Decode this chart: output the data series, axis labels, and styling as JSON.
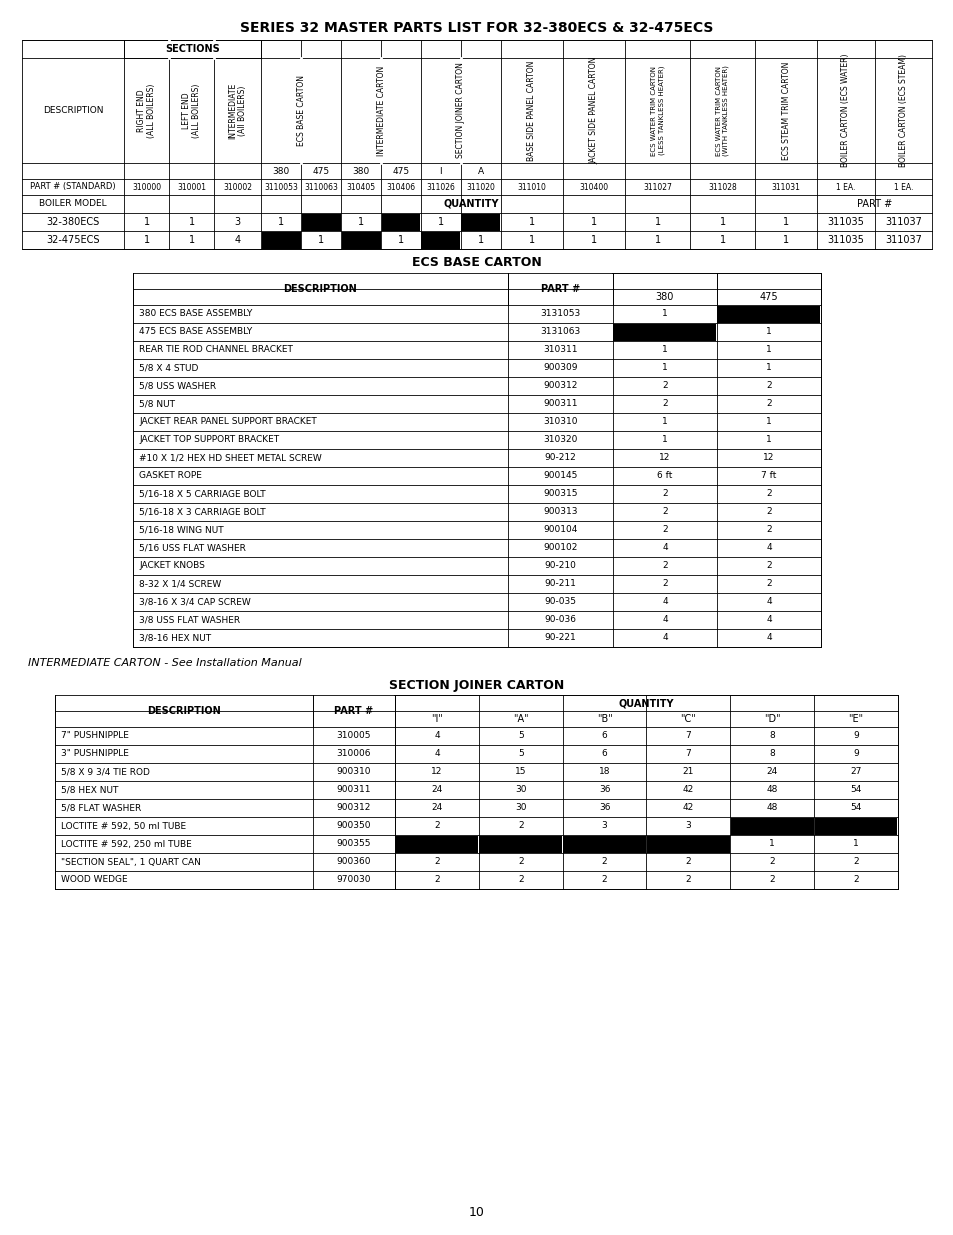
{
  "title": "SERIES 32 MASTER PARTS LIST FOR 32-380ECS & 32-475ECS",
  "ecs_base_carton_title": "ECS BASE CARTON",
  "section_joiner_carton_title": "SECTION JOINER CARTON",
  "intermediate_carton_text": "INTERMEDIATE CARTON - See Installation Manual",
  "page_number": "10",
  "master_part_numbers": [
    "310000",
    "310001",
    "310002",
    "3110053",
    "3110063",
    "310405",
    "310406",
    "311026",
    "311020",
    "311010",
    "310400",
    "311027",
    "311028",
    "311031",
    "1 EA.",
    "1 EA."
  ],
  "master_boiler_models": [
    "32-380ECS",
    "32-475ECS"
  ],
  "master_model_data_380": [
    "1",
    "1",
    "3",
    "1",
    "BLACK",
    "1",
    "BLACK",
    "1",
    "BLACK",
    "1",
    "1",
    "1",
    "1",
    "1",
    "311035",
    "311037"
  ],
  "master_model_data_475": [
    "1",
    "1",
    "4",
    "BLACK",
    "1",
    "BLACK",
    "1",
    "BLACK",
    "1",
    "1",
    "1",
    "1",
    "1",
    "1",
    "311035",
    "311037"
  ],
  "ecs_rows": [
    [
      "380 ECS BASE ASSEMBLY",
      "3131053",
      "1",
      "BLACK"
    ],
    [
      "475 ECS BASE ASSEMBLY",
      "3131063",
      "BLACK",
      "1"
    ],
    [
      "REAR TIE ROD CHANNEL BRACKET",
      "310311",
      "1",
      "1"
    ],
    [
      "5/8 X 4 STUD",
      "900309",
      "1",
      "1"
    ],
    [
      "5/8 USS WASHER",
      "900312",
      "2",
      "2"
    ],
    [
      "5/8 NUT",
      "900311",
      "2",
      "2"
    ],
    [
      "JACKET REAR PANEL SUPPORT BRACKET",
      "310310",
      "1",
      "1"
    ],
    [
      "JACKET TOP SUPPORT BRACKET",
      "310320",
      "1",
      "1"
    ],
    [
      "#10 X 1/2 HEX HD SHEET METAL SCREW",
      "90-212",
      "12",
      "12"
    ],
    [
      "GASKET ROPE",
      "900145",
      "6 ft",
      "7 ft"
    ],
    [
      "5/16-18 X 5 CARRIAGE BOLT",
      "900315",
      "2",
      "2"
    ],
    [
      "5/16-18 X 3 CARRIAGE BOLT",
      "900313",
      "2",
      "2"
    ],
    [
      "5/16-18 WING NUT",
      "900104",
      "2",
      "2"
    ],
    [
      "5/16 USS FLAT WASHER",
      "900102",
      "4",
      "4"
    ],
    [
      "JACKET KNOBS",
      "90-210",
      "2",
      "2"
    ],
    [
      "8-32 X 1/4 SCREW",
      "90-211",
      "2",
      "2"
    ],
    [
      "3/8-16 X 3/4 CAP SCREW",
      "90-035",
      "4",
      "4"
    ],
    [
      "3/8 USS FLAT WASHER",
      "90-036",
      "4",
      "4"
    ],
    [
      "3/8-16 HEX NUT",
      "90-221",
      "4",
      "4"
    ]
  ],
  "sjc_rows": [
    [
      "7\" PUSHNIPPLE",
      "310005",
      "4",
      "5",
      "6",
      "7",
      "8",
      "9"
    ],
    [
      "3\" PUSHNIPPLE",
      "310006",
      "4",
      "5",
      "6",
      "7",
      "8",
      "9"
    ],
    [
      "5/8 X 9 3/4 TIE ROD",
      "900310",
      "12",
      "15",
      "18",
      "21",
      "24",
      "27"
    ],
    [
      "5/8 HEX NUT",
      "900311",
      "24",
      "30",
      "36",
      "42",
      "48",
      "54"
    ],
    [
      "5/8 FLAT WASHER",
      "900312",
      "24",
      "30",
      "36",
      "42",
      "48",
      "54"
    ],
    [
      "LOCTITE # 592, 50 ml TUBE",
      "900350",
      "2",
      "2",
      "3",
      "3",
      "BLACK",
      "BLACK"
    ],
    [
      "LOCTITE # 592, 250 ml TUBE",
      "900355",
      "BLACK",
      "BLACK",
      "BLACK",
      "BLACK",
      "1",
      "1"
    ],
    [
      "\"SECTION SEAL\", 1 QUART CAN",
      "900360",
      "2",
      "2",
      "2",
      "2",
      "2",
      "2"
    ],
    [
      "WOOD WEDGE",
      "970030",
      "2",
      "2",
      "2",
      "2",
      "2",
      "2"
    ]
  ]
}
